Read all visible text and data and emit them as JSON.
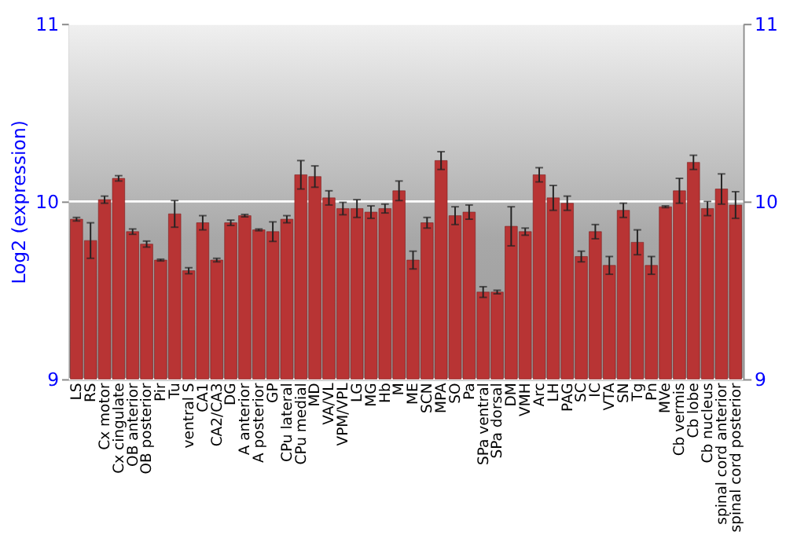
{
  "chart_data": {
    "type": "bar",
    "ylabel": "Log2 (expression)",
    "categories": [
      "LS",
      "RS",
      "Cx motor",
      "Cx cingulate",
      "OB anterior",
      "OB posterior",
      "Pir",
      "Tu",
      "ventral S",
      "CA1",
      "CA2/CA3",
      "DG",
      "A anterior",
      "A posterior",
      "GP",
      "CPu lateral",
      "CPu medial",
      "MD",
      "VA/VL",
      "VPM/VPL",
      "LG",
      "MG",
      "Hb",
      "M",
      "ME",
      "SCN",
      "MPA",
      "SO",
      "Pa",
      "SPa ventral",
      "SPa dorsal",
      "DM",
      "VMH",
      "Arc",
      "LH",
      "PAG",
      "SC",
      "IC",
      "VTA",
      "SN",
      "Tg",
      "Pn",
      "MVe",
      "Cb vermis",
      "Cb lobe",
      "Cb nucleus",
      "spinal cord anterior",
      "spinal cord posterior"
    ],
    "values": [
      9.9,
      9.78,
      10.01,
      10.13,
      9.83,
      9.76,
      9.67,
      9.93,
      9.61,
      9.88,
      9.67,
      9.88,
      9.92,
      9.84,
      9.83,
      9.9,
      10.15,
      10.14,
      10.02,
      9.96,
      9.96,
      9.94,
      9.96,
      10.06,
      9.67,
      9.88,
      10.23,
      9.92,
      9.94,
      9.49,
      9.49,
      9.86,
      9.83,
      10.15,
      10.02,
      9.99,
      9.69,
      9.83,
      9.64,
      9.95,
      9.77,
      9.64,
      9.97,
      10.06,
      10.22,
      9.96,
      10.07,
      9.98
    ],
    "errors": [
      0.01,
      0.1,
      0.02,
      0.015,
      0.015,
      0.017,
      0.005,
      0.075,
      0.017,
      0.04,
      0.01,
      0.015,
      0.007,
      0.005,
      0.055,
      0.02,
      0.08,
      0.06,
      0.04,
      0.035,
      0.05,
      0.035,
      0.025,
      0.055,
      0.05,
      0.03,
      0.05,
      0.05,
      0.04,
      0.03,
      0.01,
      0.11,
      0.02,
      0.04,
      0.07,
      0.04,
      0.03,
      0.04,
      0.05,
      0.04,
      0.07,
      0.05,
      0.005,
      0.07,
      0.04,
      0.04,
      0.085,
      0.075
    ],
    "color": "#b83434",
    "ylim": [
      9,
      11
    ],
    "yticks": [
      9,
      10,
      11
    ],
    "y2lim": [
      9,
      11
    ],
    "y2ticks": [
      9,
      10,
      11
    ],
    "grid": "y"
  }
}
